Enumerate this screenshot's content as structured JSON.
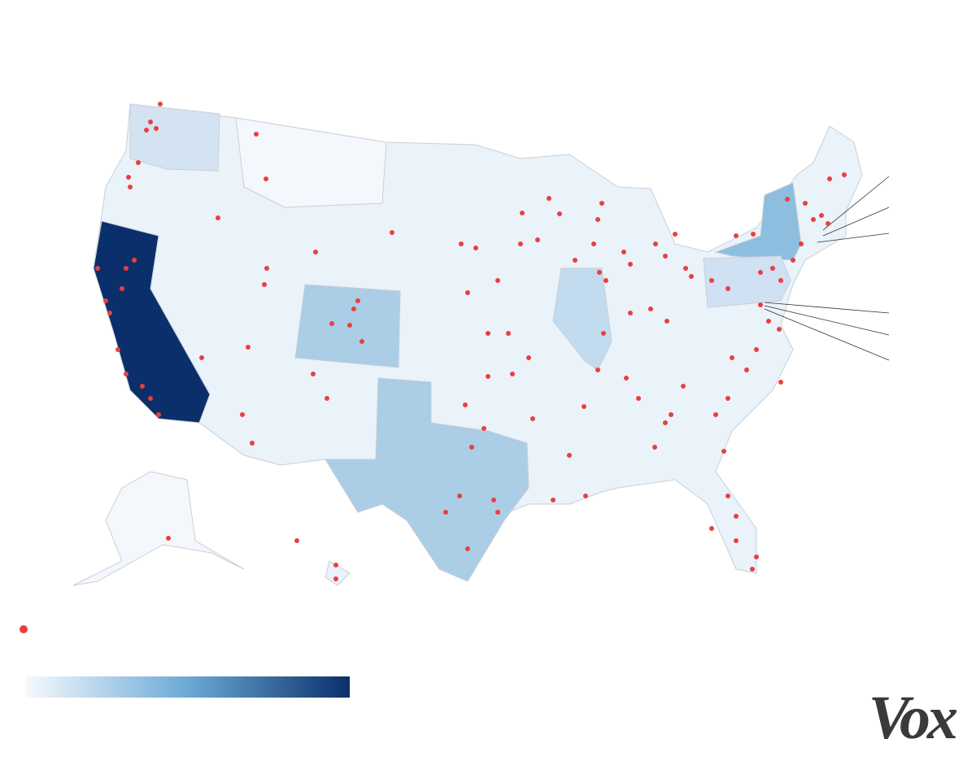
{
  "logo": "Vox"
}
